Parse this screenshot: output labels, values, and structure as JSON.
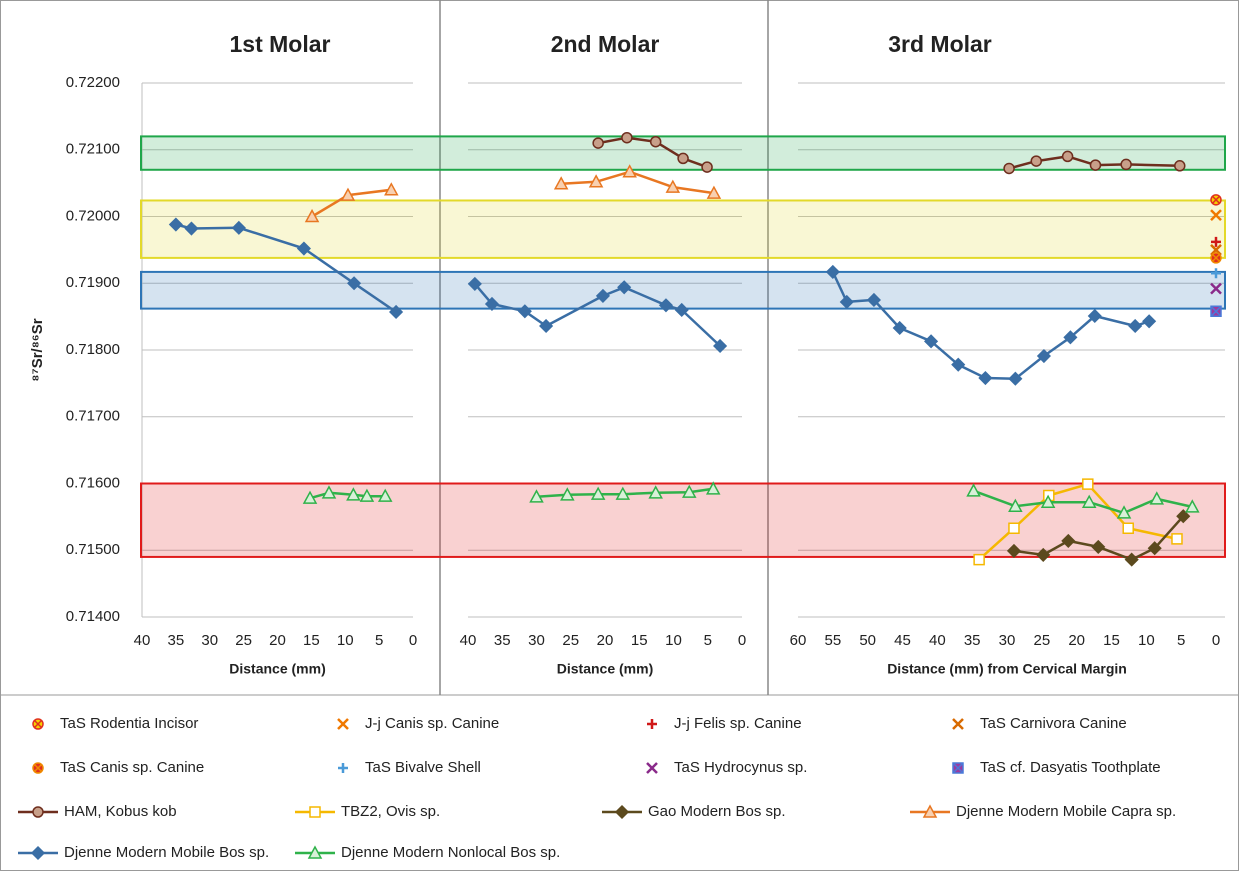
{
  "chart_data": {
    "type": "line",
    "ylabel": "⁸⁷Sr/⁸⁶Sr",
    "ylim": [
      0.714,
      0.722
    ],
    "yticks": [
      {
        "value": 0.714,
        "label": "0.71400"
      },
      {
        "value": 0.715,
        "label": "0.71500"
      },
      {
        "value": 0.716,
        "label": "0.71600"
      },
      {
        "value": 0.717,
        "label": "0.71700"
      },
      {
        "value": 0.718,
        "label": "0.71800"
      },
      {
        "value": 0.719,
        "label": "0.71900"
      },
      {
        "value": 0.72,
        "label": "0.72000"
      },
      {
        "value": 0.721,
        "label": "0.72100"
      },
      {
        "value": 0.722,
        "label": "0.72200"
      }
    ],
    "grid": true,
    "panels": [
      {
        "title": "1st Molar",
        "xlabel": "Distance (mm)",
        "xlim": [
          40,
          0
        ],
        "xticks": [
          40,
          35,
          30,
          25,
          20,
          15,
          10,
          5,
          0
        ]
      },
      {
        "title": "2nd Molar",
        "xlabel": "Distance (mm)",
        "xlim": [
          40,
          0
        ],
        "xticks": [
          40,
          35,
          30,
          25,
          20,
          15,
          10,
          5,
          0
        ]
      },
      {
        "title": "3rd Molar",
        "xlabel": "Distance (mm) from Cervical Margin",
        "xlim": [
          60,
          0
        ],
        "xticks": [
          60,
          55,
          50,
          45,
          40,
          35,
          30,
          25,
          20,
          15,
          10,
          5,
          0
        ]
      }
    ],
    "bands": [
      {
        "color": "#1fa64a",
        "ylim": [
          0.7207,
          0.7212
        ]
      },
      {
        "color": "#e3d92a",
        "ylim": [
          0.71938,
          0.72024
        ]
      },
      {
        "color": "#2e75b6",
        "ylim": [
          0.71862,
          0.71917
        ]
      },
      {
        "color": "#e01b1b",
        "ylim": [
          0.7149,
          0.716
        ]
      }
    ],
    "series": [
      {
        "name": "TaS Rodentia Incisor",
        "color": "#e0301e",
        "fill": "#f5d000",
        "marker": "circle-x",
        "line": false,
        "x": [
          null,
          null,
          [
            0
          ]
        ],
        "values": [
          null,
          null,
          [
            0.72025
          ]
        ]
      },
      {
        "name": "J-j Canis sp. Canine",
        "color": "#f07800",
        "fill": "none",
        "marker": "x",
        "line": false,
        "x": [
          null,
          null,
          [
            0
          ]
        ],
        "values": [
          null,
          null,
          [
            0.72002
          ]
        ]
      },
      {
        "name": "J-j Felis sp. Canine",
        "color": "#d01818",
        "fill": "none",
        "marker": "plus",
        "line": false,
        "x": [
          null,
          null,
          [
            0
          ]
        ],
        "values": [
          null,
          null,
          [
            0.71962
          ]
        ]
      },
      {
        "name": "TaS Carnivora Canine",
        "color": "#d86a00",
        "fill": "#f5d000",
        "marker": "x",
        "line": false,
        "x": [
          null,
          null,
          [
            0
          ]
        ],
        "values": [
          null,
          null,
          [
            0.7195
          ]
        ]
      },
      {
        "name": "TaS Canis sp. Canine",
        "color": "#f08a00",
        "fill": "#e0301e",
        "marker": "circle-x",
        "line": false,
        "x": [
          null,
          null,
          [
            0
          ]
        ],
        "values": [
          null,
          null,
          [
            0.71938
          ]
        ]
      },
      {
        "name": "TaS Bivalve Shell",
        "color": "#4a9ad8",
        "fill": "none",
        "marker": "plus",
        "line": false,
        "x": [
          null,
          null,
          [
            0
          ]
        ],
        "values": [
          null,
          null,
          [
            0.71915
          ]
        ]
      },
      {
        "name": "TaS Hydrocynus sp.",
        "color": "#8a2a8a",
        "fill": "none",
        "marker": "x",
        "line": false,
        "x": [
          null,
          null,
          [
            0
          ]
        ],
        "values": [
          null,
          null,
          [
            0.71892
          ]
        ]
      },
      {
        "name": "TaS cf. Dasyatis Toothplate",
        "color": "#4a7ad8",
        "fill": "#9a3aa0",
        "marker": "box-x",
        "line": false,
        "x": [
          null,
          null,
          [
            0
          ]
        ],
        "values": [
          null,
          null,
          [
            0.71858
          ]
        ]
      },
      {
        "name": "HAM, Kobus kob",
        "color": "#6e2e1e",
        "fill": "#c8a08a",
        "marker": "circle",
        "line": true,
        "x": [
          null,
          [
            21.0,
            16.8,
            12.6,
            8.6,
            5.1
          ],
          [
            29.7,
            25.8,
            21.3,
            17.3,
            12.9,
            5.2
          ]
        ],
        "values": [
          null,
          [
            0.7211,
            0.72118,
            0.72112,
            0.72087,
            0.72074
          ],
          [
            0.72072,
            0.72083,
            0.7209,
            0.72077,
            0.72078,
            0.72076
          ]
        ]
      },
      {
        "name": "TBZ2, Ovis sp.",
        "color": "#f5b800",
        "fill": "#ffffff",
        "marker": "square",
        "line": true,
        "x": [
          null,
          null,
          [
            34.0,
            29.0,
            24.0,
            18.4,
            12.6,
            5.6
          ]
        ],
        "values": [
          null,
          null,
          [
            0.71486,
            0.71533,
            0.71582,
            0.71599,
            0.71533,
            0.71517
          ]
        ]
      },
      {
        "name": "Gao Modern Bos sp.",
        "color": "#5c4a1e",
        "fill": "#5c4a1e",
        "marker": "diamond",
        "line": true,
        "x": [
          null,
          null,
          [
            29.0,
            24.8,
            21.2,
            16.9,
            12.1,
            8.8,
            4.7
          ]
        ],
        "values": [
          null,
          null,
          [
            0.71499,
            0.71493,
            0.71514,
            0.71505,
            0.71486,
            0.71503,
            0.71551
          ]
        ]
      },
      {
        "name": "Djenne Modern Mobile Capra sp.",
        "color": "#e87722",
        "fill": "#f8d0b0",
        "marker": "triangle",
        "line": true,
        "x": [
          [
            14.9,
            9.6,
            3.2
          ],
          [
            26.4,
            21.3,
            16.4,
            10.1,
            4.1
          ],
          null
        ],
        "values": [
          [
            0.72,
            0.72032,
            0.7204
          ],
          [
            0.72049,
            0.72052,
            0.72067,
            0.72044,
            0.72035
          ],
          null
        ]
      },
      {
        "name": "Djenne Modern Mobile Bos sp.",
        "color": "#3a6ea5",
        "fill": "#3a6ea5",
        "marker": "diamond",
        "line": true,
        "x": [
          [
            35.0,
            32.7,
            25.7,
            16.1,
            8.7,
            2.5
          ],
          [
            39.0,
            36.5,
            31.7,
            28.6,
            20.3,
            17.2,
            11.1,
            8.8,
            3.2
          ],
          [
            55.0,
            53.0,
            49.1,
            45.4,
            40.9,
            37.0,
            33.1,
            28.8,
            24.7,
            20.9,
            17.4,
            11.6,
            9.6
          ]
        ],
        "values": [
          [
            0.71988,
            0.71982,
            0.71983,
            0.71952,
            0.719,
            0.71857
          ],
          [
            0.71899,
            0.71869,
            0.71858,
            0.71836,
            0.71881,
            0.71894,
            0.71867,
            0.7186,
            0.71806
          ],
          [
            0.71917,
            0.71872,
            0.71875,
            0.71833,
            0.71813,
            0.71778,
            0.71758,
            0.71757,
            0.71791,
            0.71819,
            0.71851,
            0.71836,
            0.71843
          ]
        ]
      },
      {
        "name": "Djenne Modern Nonlocal Bos sp.",
        "color": "#2fb24a",
        "fill": "#d8f0d8",
        "marker": "triangle",
        "line": true,
        "x": [
          [
            15.2,
            12.4,
            8.8,
            6.8,
            4.1
          ],
          [
            30.0,
            25.5,
            21.0,
            17.4,
            12.6,
            7.7,
            4.2
          ],
          [
            34.8,
            28.8,
            24.1,
            18.2,
            13.2,
            8.5,
            3.4
          ]
        ],
        "values": [
          [
            0.71578,
            0.71586,
            0.71583,
            0.71581,
            0.71581
          ],
          [
            0.7158,
            0.71583,
            0.71584,
            0.71584,
            0.71586,
            0.71587,
            0.71592
          ],
          [
            0.71589,
            0.71566,
            0.71572,
            0.71572,
            0.71556,
            0.71577,
            0.71565
          ]
        ]
      }
    ]
  }
}
